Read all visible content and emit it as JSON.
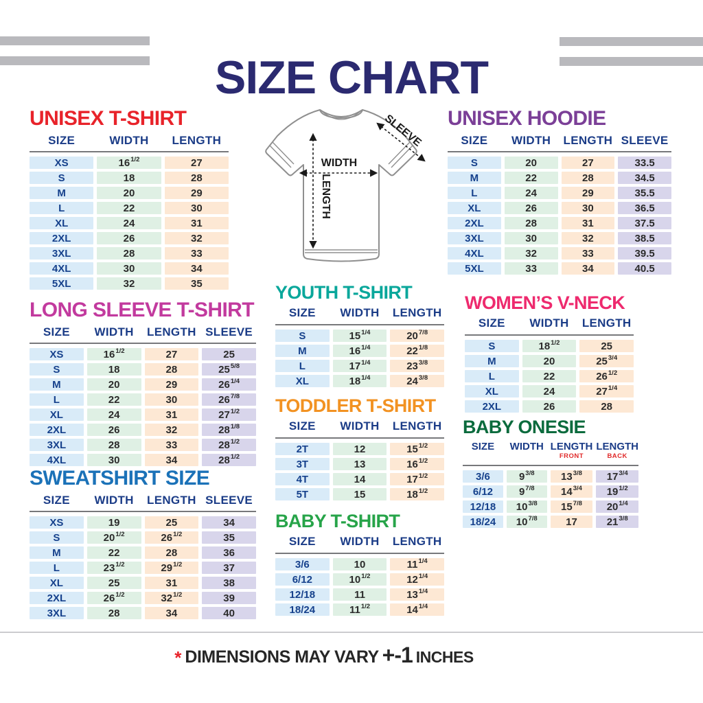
{
  "title": "SIZE CHART",
  "palette": {
    "title": "#2b2a70",
    "header_text": "#1b3c87",
    "size_cell_bg": "#d9ebf8",
    "width_cell_bg": "#dff0e4",
    "length_cell_bg": "#fde8d4",
    "sleeve_cell_bg": "#d8d5eb",
    "value_text": "#2b2b2b",
    "size_text": "#16418c",
    "rule": "#77787b",
    "bar": "#b9b9bd",
    "accent_red": "#e8232a"
  },
  "diagram": {
    "width_label": "WIDTH",
    "length_label": "LENGTH",
    "sleeve_label": "SLEEVE"
  },
  "tables": [
    {
      "id": "t-unisex-tshirt",
      "heading": "UNISEX T-SHIRT",
      "color": "#e8232a",
      "columns": [
        {
          "label": "SIZE",
          "key": "size"
        },
        {
          "label": "WIDTH",
          "key": "width"
        },
        {
          "label": "LENGTH",
          "key": "length"
        }
      ],
      "rows": [
        [
          "XS",
          "16^1/2",
          "27"
        ],
        [
          "S",
          "18",
          "28"
        ],
        [
          "M",
          "20",
          "29"
        ],
        [
          "L",
          "22",
          "30"
        ],
        [
          "XL",
          "24",
          "31"
        ],
        [
          "2XL",
          "26",
          "32"
        ],
        [
          "3XL",
          "28",
          "33"
        ],
        [
          "4XL",
          "30",
          "34"
        ],
        [
          "5XL",
          "32",
          "35"
        ]
      ]
    },
    {
      "id": "t-long-sleeve",
      "heading": "LONG SLEEVE T-SHIRT",
      "color": "#c23a9e",
      "columns": [
        {
          "label": "SIZE",
          "key": "size"
        },
        {
          "label": "WIDTH",
          "key": "width"
        },
        {
          "label": "LENGTH",
          "key": "length"
        },
        {
          "label": "SLEEVE",
          "key": "sleeve"
        }
      ],
      "rows": [
        [
          "XS",
          "16^1/2",
          "27",
          "25"
        ],
        [
          "S",
          "18",
          "28",
          "25^5/8"
        ],
        [
          "M",
          "20",
          "29",
          "26^1/4"
        ],
        [
          "L",
          "22",
          "30",
          "26^7/8"
        ],
        [
          "XL",
          "24",
          "31",
          "27^1/2"
        ],
        [
          "2XL",
          "26",
          "32",
          "28^1/8"
        ],
        [
          "3XL",
          "28",
          "33",
          "28^1/2"
        ],
        [
          "4XL",
          "30",
          "34",
          "28^1/2"
        ]
      ]
    },
    {
      "id": "t-sweatshirt",
      "heading": "SWEATSHIRT SIZE",
      "color": "#1b72b8",
      "columns": [
        {
          "label": "SIZE",
          "key": "size"
        },
        {
          "label": "WIDTH",
          "key": "width"
        },
        {
          "label": "LENGTH",
          "key": "length"
        },
        {
          "label": "SLEEVE",
          "key": "sleeve"
        }
      ],
      "rows": [
        [
          "XS",
          "19",
          "25",
          "34"
        ],
        [
          "S",
          "20^1/2",
          "26^1/2",
          "35"
        ],
        [
          "M",
          "22",
          "28",
          "36"
        ],
        [
          "L",
          "23^1/2",
          "29^1/2",
          "37"
        ],
        [
          "XL",
          "25",
          "31",
          "38"
        ],
        [
          "2XL",
          "26^1/2",
          "32^1/2",
          "39"
        ],
        [
          "3XL",
          "28",
          "34",
          "40"
        ]
      ]
    },
    {
      "id": "t-youth",
      "heading": "YOUTH T-SHIRT",
      "color": "#0aa79b",
      "columns": [
        {
          "label": "SIZE",
          "key": "size"
        },
        {
          "label": "WIDTH",
          "key": "width"
        },
        {
          "label": "LENGTH",
          "key": "length"
        }
      ],
      "rows": [
        [
          "S",
          "15^1/4",
          "20^7/8"
        ],
        [
          "M",
          "16^1/4",
          "22^1/8"
        ],
        [
          "L",
          "17^1/4",
          "23^3/8"
        ],
        [
          "XL",
          "18^1/4",
          "24^3/8"
        ]
      ]
    },
    {
      "id": "t-toddler",
      "heading": "TODDLER T-SHIRT",
      "color": "#f29222",
      "columns": [
        {
          "label": "SIZE",
          "key": "size"
        },
        {
          "label": "WIDTH",
          "key": "width"
        },
        {
          "label": "LENGTH",
          "key": "length"
        }
      ],
      "rows": [
        [
          "2T",
          "12",
          "15^1/2"
        ],
        [
          "3T",
          "13",
          "16^1/2"
        ],
        [
          "4T",
          "14",
          "17^1/2"
        ],
        [
          "5T",
          "15",
          "18^1/2"
        ]
      ]
    },
    {
      "id": "t-baby-tshirt",
      "heading": "BABY T-SHIRT",
      "color": "#27a449",
      "columns": [
        {
          "label": "SIZE",
          "key": "size"
        },
        {
          "label": "WIDTH",
          "key": "width"
        },
        {
          "label": "LENGTH",
          "key": "length"
        }
      ],
      "rows": [
        [
          "3/6",
          "10",
          "11^1/4"
        ],
        [
          "6/12",
          "10^1/2",
          "12^1/4"
        ],
        [
          "12/18",
          "11",
          "13^1/4"
        ],
        [
          "18/24",
          "11^1/2",
          "14^1/4"
        ]
      ]
    },
    {
      "id": "t-unisex-hoodie",
      "heading": "UNISEX HOODIE",
      "color": "#7b3f97",
      "columns": [
        {
          "label": "SIZE",
          "key": "size"
        },
        {
          "label": "WIDTH",
          "key": "width"
        },
        {
          "label": "LENGTH",
          "key": "length"
        },
        {
          "label": "SLEEVE",
          "key": "sleeve"
        }
      ],
      "rows": [
        [
          "S",
          "20",
          "27",
          "33.5"
        ],
        [
          "M",
          "22",
          "28",
          "34.5"
        ],
        [
          "L",
          "24",
          "29",
          "35.5"
        ],
        [
          "XL",
          "26",
          "30",
          "36.5"
        ],
        [
          "2XL",
          "28",
          "31",
          "37.5"
        ],
        [
          "3XL",
          "30",
          "32",
          "38.5"
        ],
        [
          "4XL",
          "32",
          "33",
          "39.5"
        ],
        [
          "5XL",
          "33",
          "34",
          "40.5"
        ]
      ]
    },
    {
      "id": "t-womens-vneck",
      "heading": "WOMEN’S V-NECK",
      "color": "#ee2a6e",
      "columns": [
        {
          "label": "SIZE",
          "key": "size"
        },
        {
          "label": "WIDTH",
          "key": "width"
        },
        {
          "label": "LENGTH",
          "key": "length"
        }
      ],
      "rows": [
        [
          "S",
          "18^1/2",
          "25"
        ],
        [
          "M",
          "20",
          "25^3/4"
        ],
        [
          "L",
          "22",
          "26^1/2"
        ],
        [
          "XL",
          "24",
          "27^1/4"
        ],
        [
          "2XL",
          "26",
          "28"
        ]
      ]
    },
    {
      "id": "t-baby-onesie",
      "heading": "BABY ONESIE",
      "color": "#0b6b3d",
      "columns": [
        {
          "label": "SIZE",
          "key": "size"
        },
        {
          "label": "WIDTH",
          "key": "width"
        },
        {
          "label": "LENGTH",
          "sub": "FRONT",
          "key": "length"
        },
        {
          "label": "LENGTH",
          "sub": "BACK",
          "key": "sleeve"
        }
      ],
      "rows": [
        [
          "3/6",
          "9^3/8",
          "13^3/8",
          "17^3/4"
        ],
        [
          "6/12",
          "9^7/8",
          "14^3/4",
          "19^1/2"
        ],
        [
          "12/18",
          "10^3/8",
          "15^7/8",
          "20^1/4"
        ],
        [
          "18/24",
          "10^7/8",
          "17",
          "21^3/8"
        ]
      ]
    }
  ],
  "footer": {
    "asterisk": "*",
    "text": "DIMENSIONS MAY VARY",
    "plusminus": "+-1",
    "unit": "INCHES"
  }
}
